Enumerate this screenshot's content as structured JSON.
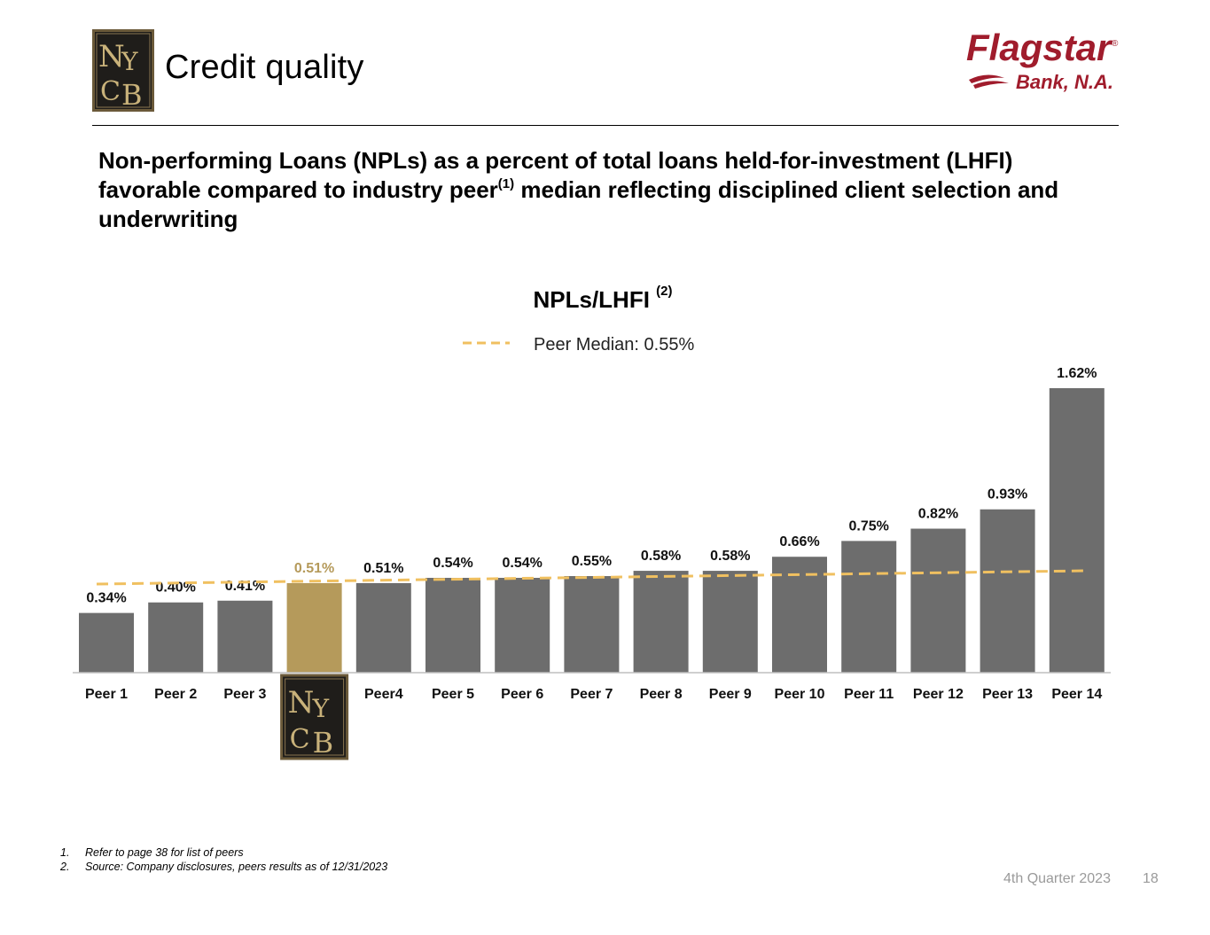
{
  "header": {
    "logo_text": "NYCB",
    "title": "Credit quality",
    "brand_logo": {
      "name": "Flagstar",
      "registered_mark": "®",
      "sub": "Bank, N.A."
    }
  },
  "headline": {
    "part1": "Non-performing Loans (NPLs) as a percent of total loans held-for-investment (LHFI) favorable compared to industry peer",
    "sup": "(1)",
    "part2": " median reflecting disciplined client selection and underwriting"
  },
  "chart_data": {
    "type": "bar",
    "title": "NPLs/LHFI",
    "title_footnote": "(2)",
    "categories": [
      "Peer 1",
      "Peer 2",
      "Peer 3",
      "NYCB",
      "Peer4",
      "Peer 5",
      "Peer 6",
      "Peer 7",
      "Peer 8",
      "Peer 9",
      "Peer 10",
      "Peer 11",
      "Peer 12",
      "Peer 13",
      "Peer 14"
    ],
    "values": [
      0.34,
      0.4,
      0.41,
      0.51,
      0.51,
      0.54,
      0.54,
      0.55,
      0.58,
      0.58,
      0.66,
      0.75,
      0.82,
      0.93,
      1.62
    ],
    "labels": [
      "0.34%",
      "0.40%",
      "0.41%",
      "0.51%",
      "0.51%",
      "0.54%",
      "0.54%",
      "0.55%",
      "0.58%",
      "0.58%",
      "0.66%",
      "0.75%",
      "0.82%",
      "0.93%",
      "1.62%"
    ],
    "highlight_index": 3,
    "highlight_category_shown_as": "nycb-logo",
    "ylim": [
      0,
      1.62
    ],
    "reference_line": {
      "label": "Peer Median: 0.55%",
      "value": 0.55,
      "style": "dashed"
    },
    "colors": {
      "bar": "#6d6d6d",
      "highlight": "#b59a5b",
      "median": "#f0c060",
      "axis": "#bfbfbf"
    },
    "legend_position": "top-center",
    "grid": false
  },
  "footnotes": [
    {
      "num": "1.",
      "text": "Refer to page 38 for list of peers"
    },
    {
      "num": "2.",
      "text": "Source: Company disclosures, peers results as of 12/31/2023"
    }
  ],
  "footer": {
    "quarter": "4th Quarter 2023",
    "page": "18"
  }
}
